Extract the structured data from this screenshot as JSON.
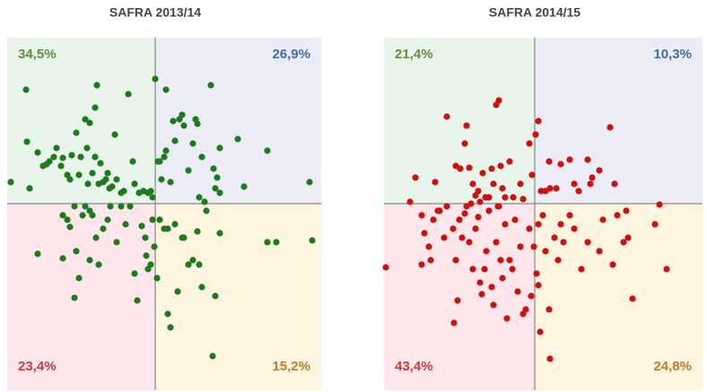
{
  "chart_data": [
    {
      "type": "scatter",
      "title": "SAFRA 2013/14",
      "color": "#1e7a1e",
      "xlim": [
        8,
        358
      ],
      "ylim": [
        2,
        395
      ],
      "xcross": 173,
      "ycross": 210,
      "quadrant_labels": [
        "34,5%",
        "26,9%",
        "23,4%",
        "15,2%"
      ],
      "quadrant_label_colors": [
        "#5e8f3c",
        "#3d6ea5",
        "#d03a3a",
        "#c27a2e"
      ],
      "quadrant_colors": [
        "#e9f5ea",
        "#ececf6",
        "#fde7ea",
        "#fdf5df"
      ],
      "x": [
        12,
        29,
        30,
        33,
        42,
        48,
        52,
        55,
        60,
        63,
        68,
        70,
        75,
        78,
        80,
        85,
        88,
        90,
        95,
        97,
        98,
        100,
        103,
        106,
        106,
        108,
        110,
        112,
        115,
        118,
        120,
        122,
        125,
        128,
        130,
        135,
        138,
        143,
        148,
        150,
        155,
        160,
        165,
        168,
        170,
        173,
        176,
        178,
        180,
        183,
        185,
        185,
        190,
        193,
        195,
        200,
        203,
        205,
        210,
        215,
        218,
        220,
        222,
        225,
        228,
        235,
        238,
        240,
        242,
        245,
        245,
        265,
        272,
        298,
        345,
        70,
        70,
        75,
        78,
        83,
        85,
        88,
        92,
        95,
        100,
        100,
        103,
        107,
        110,
        115,
        120,
        123,
        130,
        135,
        140,
        145,
        150,
        153,
        158,
        162,
        163,
        165,
        168,
        170,
        172,
        175,
        178,
        183,
        187,
        187,
        190,
        195,
        198,
        203,
        205,
        210,
        215,
        220,
        222,
        225,
        230,
        240,
        245,
        298,
        308,
        348,
        237,
        83,
        42
      ],
      "y": [
        234,
        337,
        279,
        227,
        267,
        252,
        254,
        257,
        262,
        272,
        252,
        261,
        242,
        237,
        264,
        289,
        242,
        262,
        304,
        272,
        232,
        300,
        244,
        317,
        262,
        342,
        232,
        255,
        234,
        237,
        244,
        227,
        229,
        287,
        237,
        222,
        224,
        332,
        257,
        232,
        222,
        224,
        222,
        224,
        217,
        349,
        257,
        257,
        237,
        262,
        337,
        269,
        234,
        302,
        280,
        304,
        309,
        297,
        247,
        277,
        304,
        299,
        217,
        262,
        212,
        342,
        249,
        227,
        239,
        272,
        222,
        282,
        229,
        269,
        234,
        149,
        197,
        192,
        184,
        207,
        157,
        127,
        197,
        207,
        202,
        147,
        197,
        172,
        142,
        182,
        192,
        207,
        167,
        207,
        187,
        207,
        132,
        102,
        185,
        172,
        152,
        137,
        142,
        192,
        162,
        127,
        192,
        182,
        182,
        87,
        72,
        187,
        112,
        172,
        172,
        142,
        147,
        179,
        142,
        117,
        202,
        107,
        177,
        167,
        167,
        169,
        40,
        105,
        154
      ]
    },
    {
      "type": "scatter",
      "title": "SAFRA 2014/15",
      "color": "#cc1111",
      "xlim": [
        428,
        783
      ],
      "ylim": [
        2,
        395
      ],
      "xcross": 596,
      "ycross": 210,
      "quadrant_labels": [
        "21,4%",
        "10,3%",
        "43,4%",
        "24,8%"
      ],
      "quadrant_label_colors": [
        "#5e8f3c",
        "#3d6ea5",
        "#d03a3a",
        "#c27a2e"
      ],
      "quadrant_colors": [
        "#e9f5ea",
        "#ececf6",
        "#fde7ea",
        "#fdf5df"
      ],
      "x": [
        498,
        518,
        508,
        513,
        520,
        523,
        527,
        530,
        533,
        535,
        538,
        541,
        545,
        548,
        550,
        553,
        556,
        558,
        560,
        563,
        568,
        572,
        580,
        583,
        590,
        593,
        597,
        600,
        603,
        608,
        612,
        613,
        620,
        625,
        635,
        640,
        645,
        655,
        658,
        660,
        668,
        680,
        685,
        463,
        485,
        457,
        430,
        470,
        473,
        478,
        480,
        483,
        488,
        490,
        495,
        498,
        505,
        508,
        510,
        512,
        515,
        518,
        520,
        523,
        525,
        527,
        530,
        533,
        535,
        537,
        540,
        542,
        545,
        548,
        550,
        553,
        556,
        558,
        560,
        563,
        565,
        568,
        571,
        574,
        577,
        580,
        583,
        586,
        590,
        592,
        595,
        598,
        600,
        602,
        605,
        608,
        612,
        613,
        618,
        622,
        625,
        628,
        635,
        640,
        648,
        655,
        668,
        672,
        683,
        688,
        695,
        698,
        700,
        705,
        735,
        730,
        743,
        506,
        470,
        555,
        600
      ],
      "y": [
        307,
        277,
        252,
        249,
        297,
        250,
        232,
        219,
        224,
        212,
        244,
        217,
        217,
        249,
        232,
        320,
        325,
        252,
        227,
        217,
        257,
        217,
        232,
        215,
        277,
        242,
        287,
        302,
        224,
        224,
        257,
        227,
        227,
        254,
        259,
        232,
        224,
        259,
        232,
        239,
        247,
        295,
        232,
        239,
        234,
        212,
        139,
        197,
        177,
        162,
        147,
        192,
        202,
        202,
        172,
        207,
        182,
        147,
        102,
        192,
        172,
        199,
        207,
        167,
        210,
        137,
        182,
        195,
        122,
        109,
        137,
        157,
        202,
        117,
        97,
        167,
        207,
        147,
        127,
        187,
        82,
        147,
        137,
        192,
        112,
        162,
        87,
        92,
        182,
        107,
        162,
        132,
        187,
        67,
        197,
        157,
        92,
        37,
        172,
        147,
        187,
        167,
        197,
        182,
        137,
        167,
        157,
        192,
        142,
        197,
        167,
        202,
        172,
        104,
        209,
        187,
        137,
        77,
        142,
        207,
        119
      ]
    }
  ]
}
